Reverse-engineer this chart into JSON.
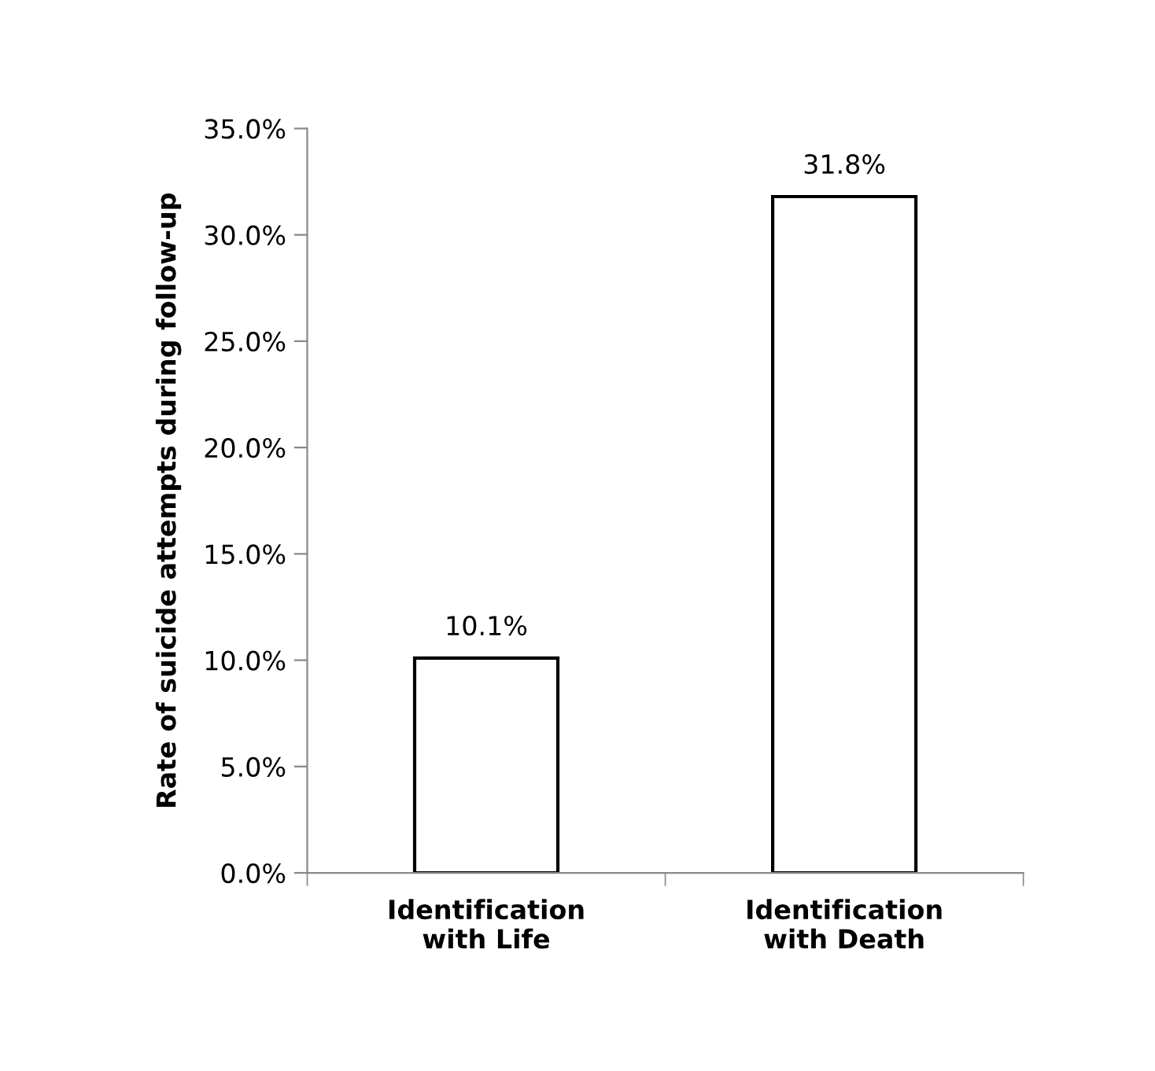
{
  "chart_data": {
    "type": "bar",
    "ylabel": "Rate of suicide attempts during follow-up",
    "categories": [
      "Identification\nwith Life",
      "Identification\nwith Death"
    ],
    "values": [
      10.1,
      31.8
    ],
    "color": "#ffffff",
    "value_labels": [
      "10.1%",
      "31.8%"
    ],
    "ylim": [
      0,
      35
    ],
    "yticks": [
      {
        "value": 0,
        "label": "0.0%"
      },
      {
        "value": 5,
        "label": "5.0%"
      },
      {
        "value": 10,
        "label": "10.0%"
      },
      {
        "value": 15,
        "label": "15.0%"
      },
      {
        "value": 20,
        "label": "20.0%"
      },
      {
        "value": 25,
        "label": "25.0%"
      },
      {
        "value": 30,
        "label": "30.0%"
      },
      {
        "value": 35,
        "label": "35.0%"
      }
    ],
    "grid": false,
    "legend": false
  }
}
